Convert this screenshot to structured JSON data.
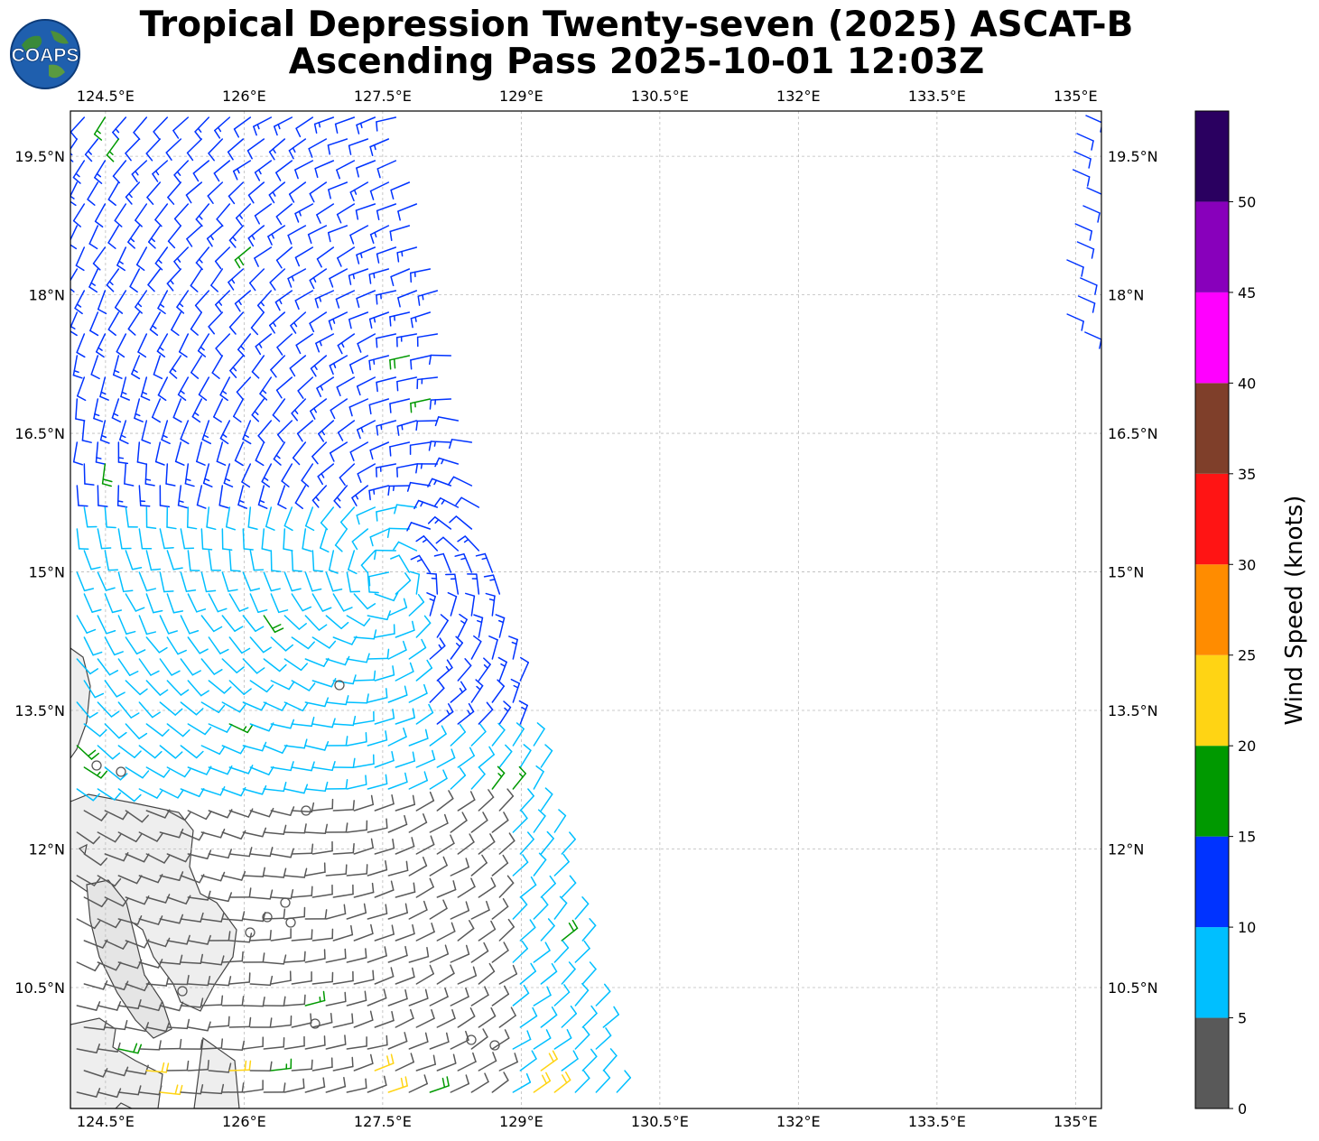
{
  "title": {
    "line1": "Tropical Depression Twenty-seven (2025) ASCAT-B",
    "line2": "Ascending Pass 2025-10-01 12:03Z"
  },
  "logo": {
    "text": "COAPS",
    "icon": "globe-logo-icon"
  },
  "map": {
    "lon_ticks": [
      "124.5°E",
      "126°E",
      "127.5°E",
      "129°E",
      "130.5°E",
      "132°E",
      "133.5°E",
      "135°E"
    ],
    "lat_ticks": [
      "19.5°N",
      "18°N",
      "16.5°N",
      "15°N",
      "13.5°N",
      "12°N",
      "10.5°N"
    ],
    "lon_values": [
      124.5,
      126,
      127.5,
      129,
      130.5,
      132,
      133.5,
      135
    ],
    "lat_values": [
      19.5,
      18,
      16.5,
      15,
      13.5,
      12,
      10.5
    ],
    "lon_range": [
      124.12,
      135.28
    ],
    "lat_range": [
      9.19,
      19.99
    ],
    "grid": true,
    "wind_barbs": "ASCAT-B scatterometer wind barbs, colored by speed"
  },
  "colorbar": {
    "label": "Wind Speed (knots)",
    "ticks": [
      "0",
      "5",
      "10",
      "15",
      "20",
      "25",
      "30",
      "35",
      "40",
      "45",
      "50"
    ],
    "bins": [
      {
        "from": 0,
        "to": 5,
        "color": "#595959"
      },
      {
        "from": 5,
        "to": 10,
        "color": "#00bfff"
      },
      {
        "from": 10,
        "to": 15,
        "color": "#0033ff"
      },
      {
        "from": 15,
        "to": 20,
        "color": "#009900"
      },
      {
        "from": 20,
        "to": 25,
        "color": "#ffd414"
      },
      {
        "from": 25,
        "to": 30,
        "color": "#ff8c00"
      },
      {
        "from": 30,
        "to": 35,
        "color": "#ff1414"
      },
      {
        "from": 35,
        "to": 40,
        "color": "#7f3f2a"
      },
      {
        "from": 40,
        "to": 45,
        "color": "#ff00ff"
      },
      {
        "from": 45,
        "to": 50,
        "color": "#8800bb"
      },
      {
        "from": 50,
        "to": 55,
        "color": "#2a0060"
      }
    ]
  }
}
